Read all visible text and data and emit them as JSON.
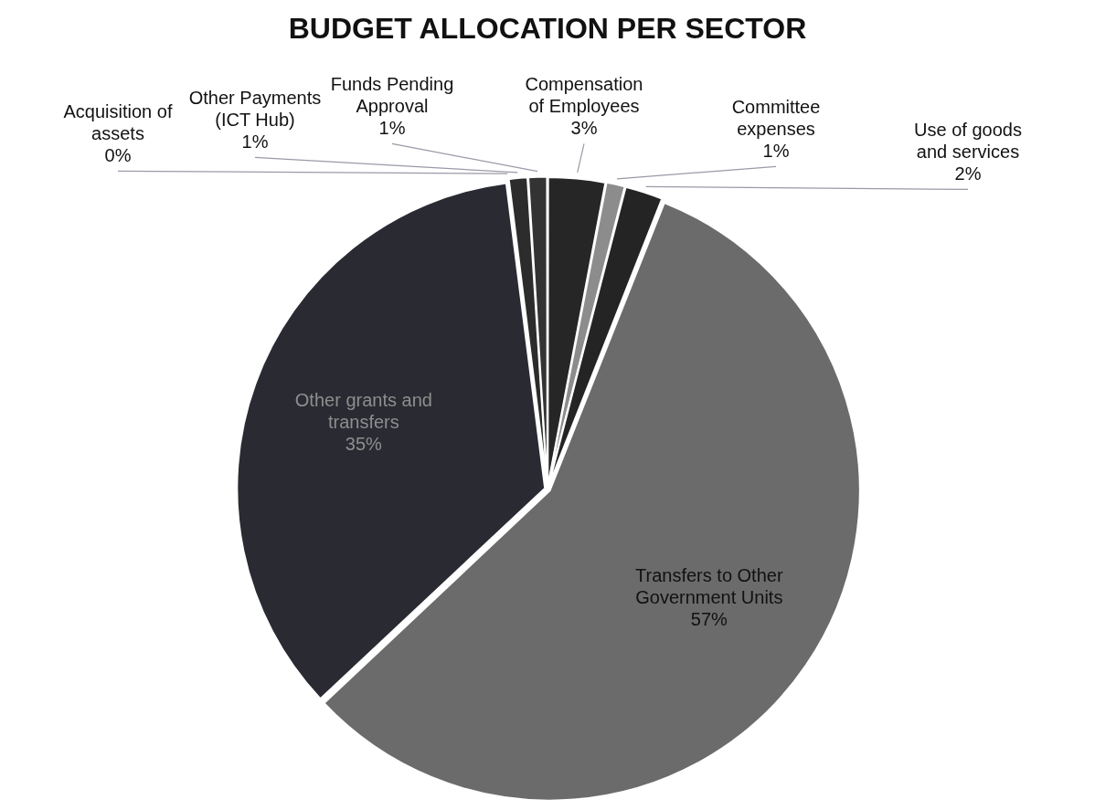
{
  "chart_data": {
    "type": "pie",
    "title": "BUDGET ALLOCATION PER SECTOR",
    "categories": [
      "Compensation of Employees",
      "Committee expenses",
      "Use of goods and services",
      "Transfers to Other Government Units",
      "Other grants and transfers",
      "Acquisition of assets",
      "Other Payments (ICT Hub)",
      "Funds Pending Approval"
    ],
    "values": [
      3,
      1,
      2,
      57,
      35,
      0,
      1,
      1
    ],
    "value_labels": [
      "3%",
      "1%",
      "2%",
      "57%",
      "35%",
      "0%",
      "1%",
      "1%"
    ],
    "colors": [
      "#262626",
      "#8c8c8c",
      "#242424",
      "#6b6b6b",
      "#2a2a33",
      "#1e1e1e",
      "#2c2c2c",
      "#333333"
    ]
  }
}
